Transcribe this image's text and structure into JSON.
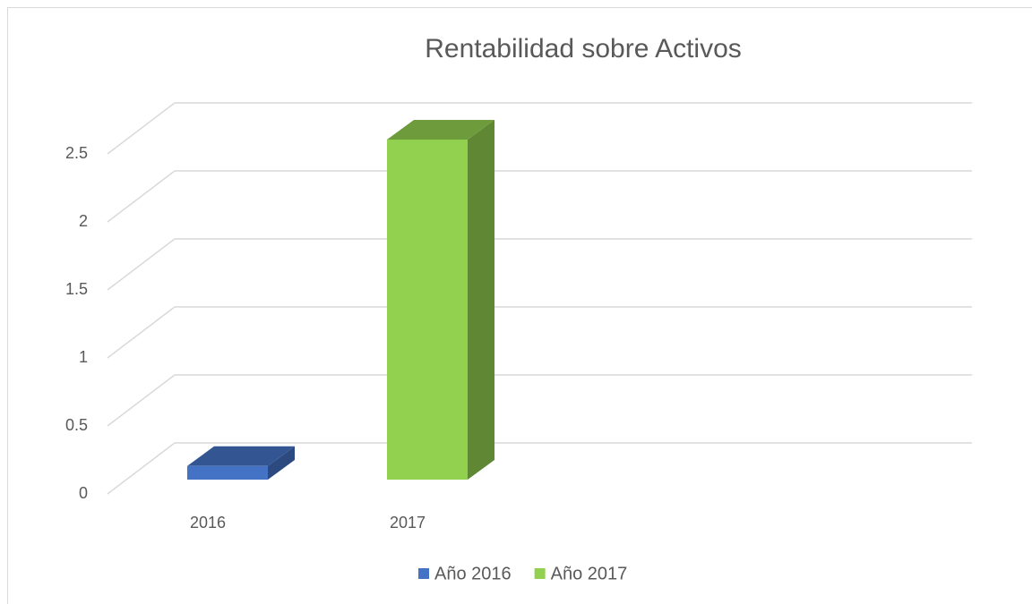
{
  "chart_data": {
    "type": "bar3d",
    "title": "Rentabilidad sobre Activos",
    "categories": [
      "2016",
      "2017"
    ],
    "series": [
      {
        "name": "Año 2016",
        "color": "#4472c4",
        "values": [
          0.1,
          null
        ]
      },
      {
        "name": "Año 2017",
        "color": "#92d050",
        "values": [
          null,
          2.5
        ]
      }
    ],
    "ylim": [
      0,
      2.5
    ],
    "yticks": [
      0,
      0.5,
      1,
      1.5,
      2,
      2.5
    ],
    "grid": true,
    "legend": "bottom"
  }
}
